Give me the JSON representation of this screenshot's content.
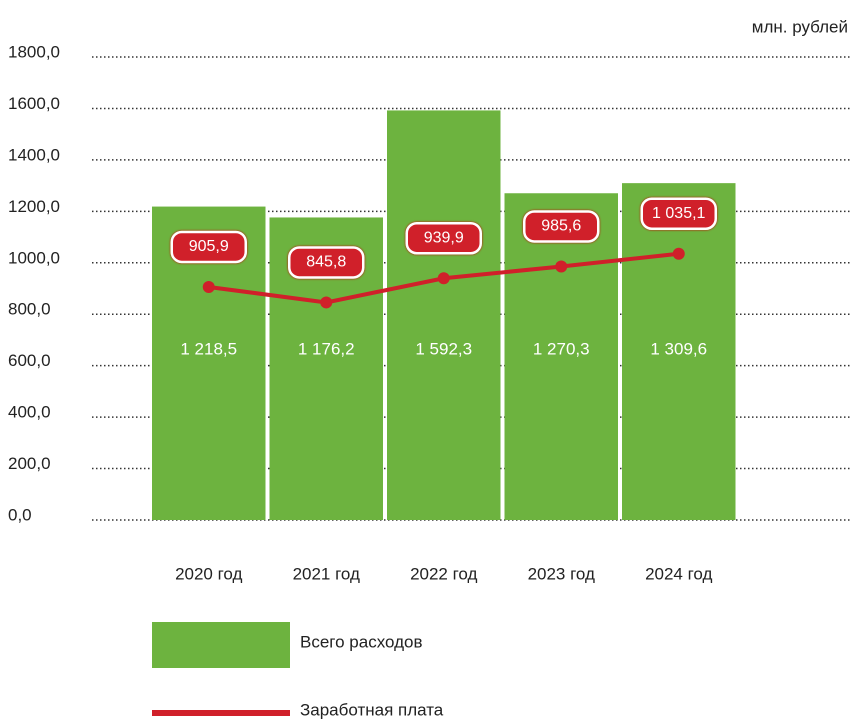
{
  "chart_data": {
    "type": "bar_line",
    "y_axis_label": "млн. рублей",
    "categories": [
      "2020 год",
      "2021 год",
      "2022 год",
      "2023 год",
      "2024 год"
    ],
    "series": [
      {
        "name": "Всего расходов",
        "type": "bar",
        "color": "#6db33f",
        "values": [
          1218.5,
          1176.2,
          1592.3,
          1270.3,
          1309.6
        ],
        "value_labels": [
          "1 218,5",
          "1 176,2",
          "1 592,3",
          "1 270,3",
          "1 309,6"
        ]
      },
      {
        "name": "Заработная плата",
        "type": "line",
        "color": "#d0202a",
        "values": [
          905.9,
          845.8,
          939.9,
          985.6,
          1035.1
        ],
        "value_labels": [
          "905,9",
          "845,8",
          "939,9",
          "985,6",
          "1 035,1"
        ]
      }
    ],
    "ylim": [
      0,
      1800
    ],
    "yticks": [
      {
        "value": 0,
        "label": "0,0"
      },
      {
        "value": 200,
        "label": "200,0"
      },
      {
        "value": 400,
        "label": "400,0"
      },
      {
        "value": 600,
        "label": "600,0"
      },
      {
        "value": 800,
        "label": "800,0"
      },
      {
        "value": 1000,
        "label": "1000,0"
      },
      {
        "value": 1200,
        "label": "1200,0"
      },
      {
        "value": 1400,
        "label": "1400,0"
      },
      {
        "value": 1600,
        "label": "1600,0"
      },
      {
        "value": 1800,
        "label": "1800,0"
      }
    ],
    "grid": true
  }
}
